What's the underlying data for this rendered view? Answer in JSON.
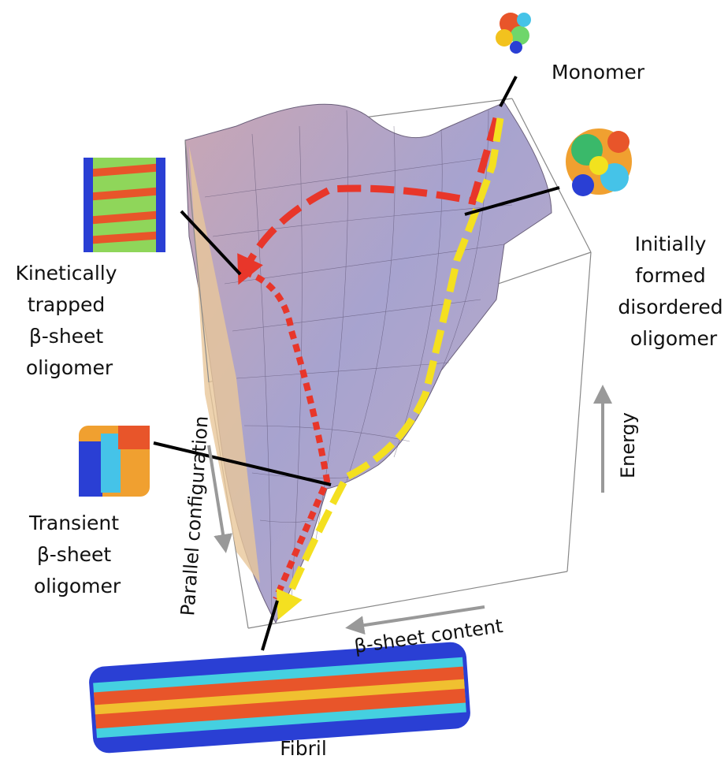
{
  "labels": {
    "monomer": "Monomer",
    "initial_oligomer": [
      "Initially",
      "formed",
      "disordered",
      "oligomer"
    ],
    "trapped_oligomer": [
      "Kinetically",
      "trapped",
      "β-sheet",
      "oligomer"
    ],
    "transient_oligomer": [
      "Transient",
      "β-sheet",
      "oligomer"
    ],
    "fibril": "Fibril"
  },
  "axes": {
    "energy": "Energy",
    "parallel": "Parallel configuration",
    "beta_content": "β-sheet content"
  }
}
